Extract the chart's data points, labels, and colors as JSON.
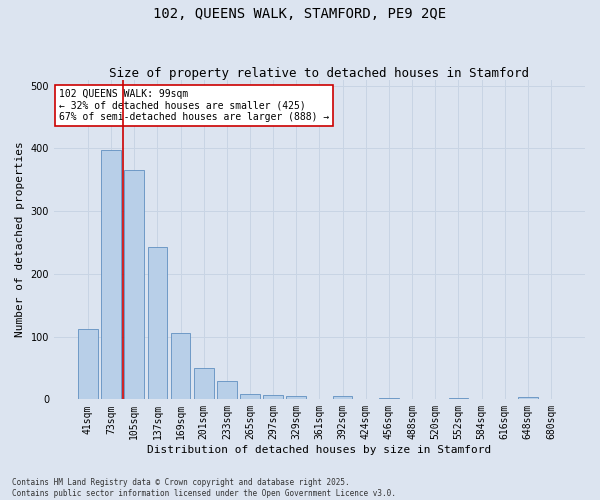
{
  "title": "102, QUEENS WALK, STAMFORD, PE9 2QE",
  "subtitle": "Size of property relative to detached houses in Stamford",
  "xlabel": "Distribution of detached houses by size in Stamford",
  "ylabel": "Number of detached properties",
  "categories": [
    "41sqm",
    "73sqm",
    "105sqm",
    "137sqm",
    "169sqm",
    "201sqm",
    "233sqm",
    "265sqm",
    "297sqm",
    "329sqm",
    "361sqm",
    "392sqm",
    "424sqm",
    "456sqm",
    "488sqm",
    "520sqm",
    "552sqm",
    "584sqm",
    "616sqm",
    "648sqm",
    "680sqm"
  ],
  "values": [
    112,
    397,
    365,
    243,
    105,
    50,
    29,
    9,
    7,
    5,
    0,
    6,
    0,
    2,
    0,
    0,
    2,
    0,
    0,
    3,
    0
  ],
  "bar_color": "#b8cfe8",
  "bar_edge_color": "#6090c0",
  "vline_x_index": 2,
  "vline_color": "#cc0000",
  "annotation_text": "102 QUEENS WALK: 99sqm\n← 32% of detached houses are smaller (425)\n67% of semi-detached houses are larger (888) →",
  "annotation_box_color": "#ffffff",
  "annotation_box_edge": "#cc0000",
  "grid_color": "#c8d4e4",
  "bg_color": "#dce4f0",
  "footer": "Contains HM Land Registry data © Crown copyright and database right 2025.\nContains public sector information licensed under the Open Government Licence v3.0.",
  "ylim": [
    0,
    510
  ],
  "title_fontsize": 10,
  "subtitle_fontsize": 9,
  "xlabel_fontsize": 8,
  "ylabel_fontsize": 8,
  "tick_fontsize": 7,
  "annot_fontsize": 7
}
